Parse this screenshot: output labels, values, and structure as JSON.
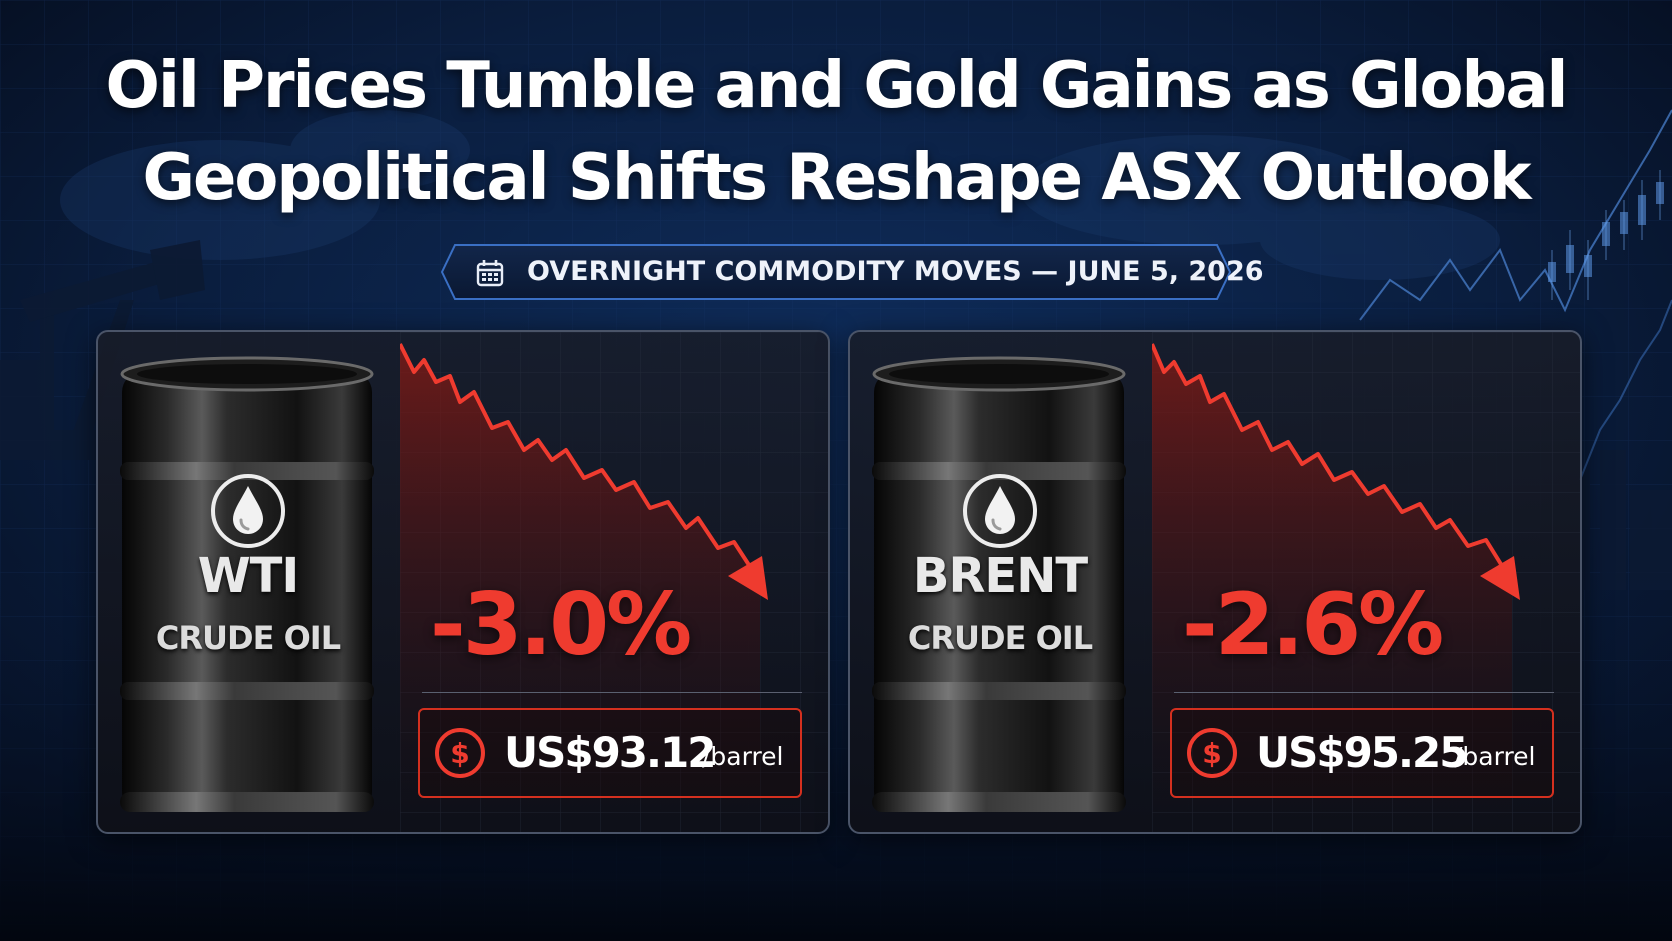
{
  "headline": {
    "line1": "Oil Prices Tumble and Gold Gains as Global",
    "line2": "Geopolitical Shifts Reshape ASX Outlook"
  },
  "banner": {
    "icon": "calendar-icon",
    "text": "OVERNIGHT COMMODITY MOVES — JUNE 5, 2026"
  },
  "panels": [
    {
      "name": "WTI",
      "subtitle": "CRUDE OIL",
      "icon": "oil-drop-icon",
      "change": "-3.0%",
      "price": "US$93.12",
      "unit": "/barrel",
      "price_icon": "dollar-icon"
    },
    {
      "name": "BRENT",
      "subtitle": "CRUDE OIL",
      "icon": "oil-drop-icon",
      "change": "-2.6%",
      "price": "US$95.25",
      "unit": "/barrel",
      "price_icon": "dollar-icon"
    }
  ],
  "colors": {
    "background": "#061226",
    "accent_red": "#ef3b2f",
    "banner_border": "#3a6fc4",
    "text": "#ffffff"
  }
}
